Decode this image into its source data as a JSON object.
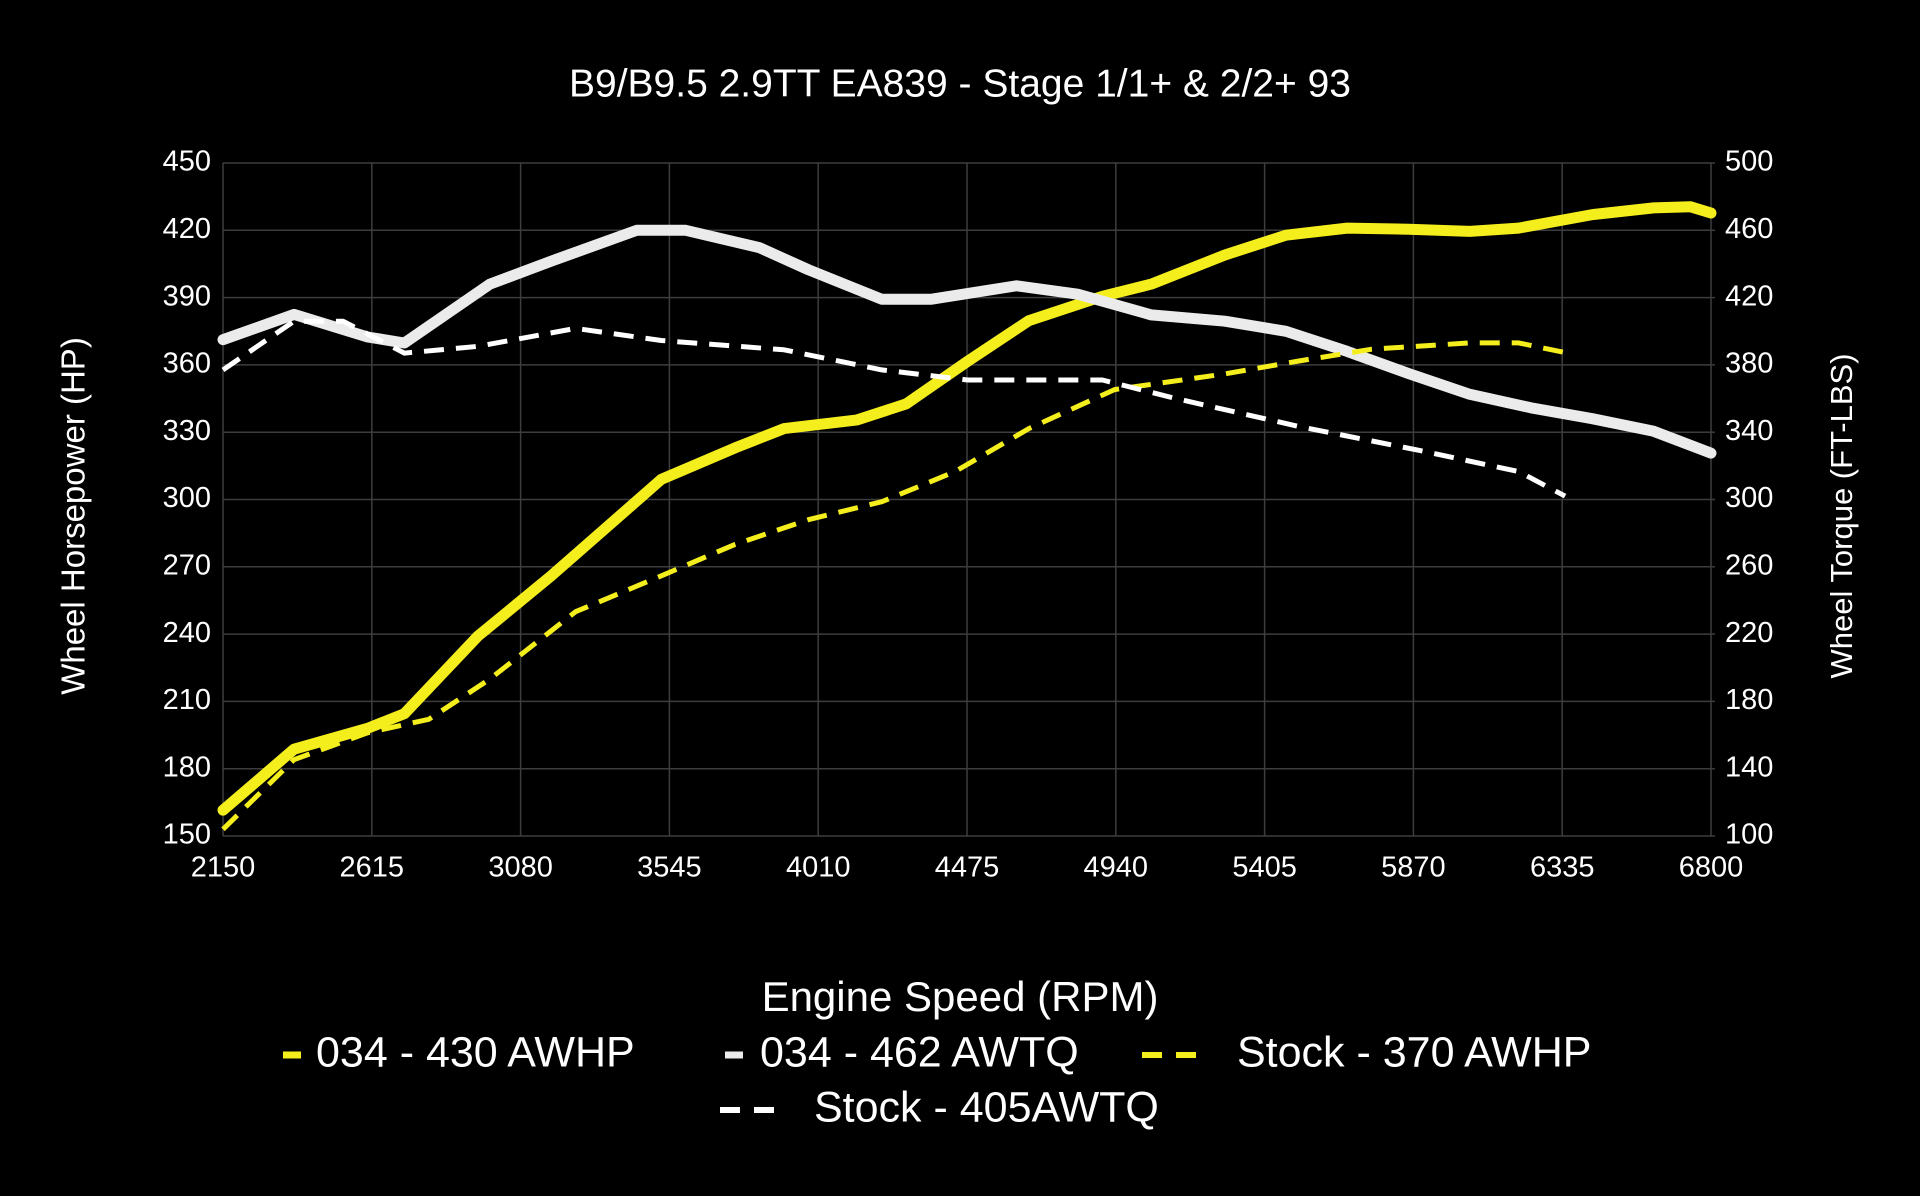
{
  "chart_data": {
    "type": "line",
    "title": "B9/B9.5 2.9TT EA839 - Stage 1/1+ & 2/2+ 93",
    "xlabel": "Engine Speed (RPM)",
    "ylabel": "Wheel Horsepower (HP)",
    "y2label": "Wheel Torque (FT-LBS)",
    "xlim": [
      2150,
      6800
    ],
    "xticks": [
      2150,
      2615,
      3080,
      3545,
      4010,
      4475,
      4940,
      5405,
      5870,
      6335,
      6800
    ],
    "ylim": [
      150,
      450
    ],
    "yticks": [
      150,
      180,
      210,
      240,
      270,
      300,
      330,
      360,
      390,
      420,
      450
    ],
    "y2lim": [
      100,
      500
    ],
    "y2ticks": [
      100,
      140,
      180,
      220,
      260,
      300,
      340,
      380,
      420,
      460,
      500
    ],
    "grid": true,
    "series": [
      {
        "name": "034 - 430 AWHP",
        "color": "#f4ee1c",
        "dashed": false,
        "axis": "y",
        "x": [
          2150,
          2372,
          2602,
          2717,
          2946,
          3176,
          3520,
          3750,
          3903,
          4132,
          4285,
          4477,
          4668,
          4898,
          5051,
          5281,
          5472,
          5663,
          5855,
          6046,
          6199,
          6429,
          6620,
          6735,
          6800
        ],
        "values": [
          161.5,
          188.7,
          198,
          204.5,
          239,
          266,
          309,
          323,
          331.6,
          335.5,
          342.6,
          361.6,
          379.7,
          390.6,
          396,
          409,
          417.8,
          421,
          420.5,
          419.5,
          421,
          427,
          430,
          430.5,
          427.7
        ]
      },
      {
        "name": "034 - 462 AWTQ",
        "color": "#ebebeb",
        "dashed": false,
        "axis": "y2",
        "x": [
          2150,
          2372,
          2602,
          2717,
          2984,
          3176,
          3443,
          3596,
          3826,
          3979,
          4209,
          4362,
          4630,
          4821,
          5051,
          5281,
          5472,
          5663,
          5855,
          6046,
          6237,
          6429,
          6620,
          6800
        ],
        "values": [
          395,
          410,
          396.6,
          393,
          428,
          441.7,
          460,
          460,
          449.7,
          436.6,
          419,
          419,
          427,
          422,
          409.7,
          406,
          400,
          388,
          374.8,
          362.5,
          354.5,
          348,
          340.6,
          327.6
        ]
      },
      {
        "name": "Stock - 370 AWHP",
        "color": "#f4ee1c",
        "dashed": true,
        "axis": "y",
        "x": [
          2150,
          2372,
          2602,
          2793,
          2984,
          3252,
          3520,
          3750,
          3979,
          4209,
          4438,
          4668,
          4936,
          5281,
          5510,
          5740,
          6046,
          6199,
          6344
        ],
        "values": [
          153,
          184,
          196,
          202,
          220,
          250,
          266,
          280,
          291,
          299,
          312.5,
          331.6,
          349,
          356,
          361.7,
          367,
          369.8,
          369.8,
          365.5
        ]
      },
      {
        "name": "Stock - 405AWTQ",
        "color": "#ffffff",
        "dashed": true,
        "axis": "y2",
        "x": [
          2150,
          2372,
          2525,
          2717,
          2946,
          3252,
          3520,
          3903,
          4209,
          4477,
          4898,
          5128,
          5510,
          5893,
          6199,
          6344
        ],
        "values": [
          377,
          406,
          406,
          387,
          391,
          401.7,
          394.5,
          389,
          377,
          371,
          371,
          360,
          343.5,
          329,
          316.6,
          302
        ]
      }
    ]
  }
}
